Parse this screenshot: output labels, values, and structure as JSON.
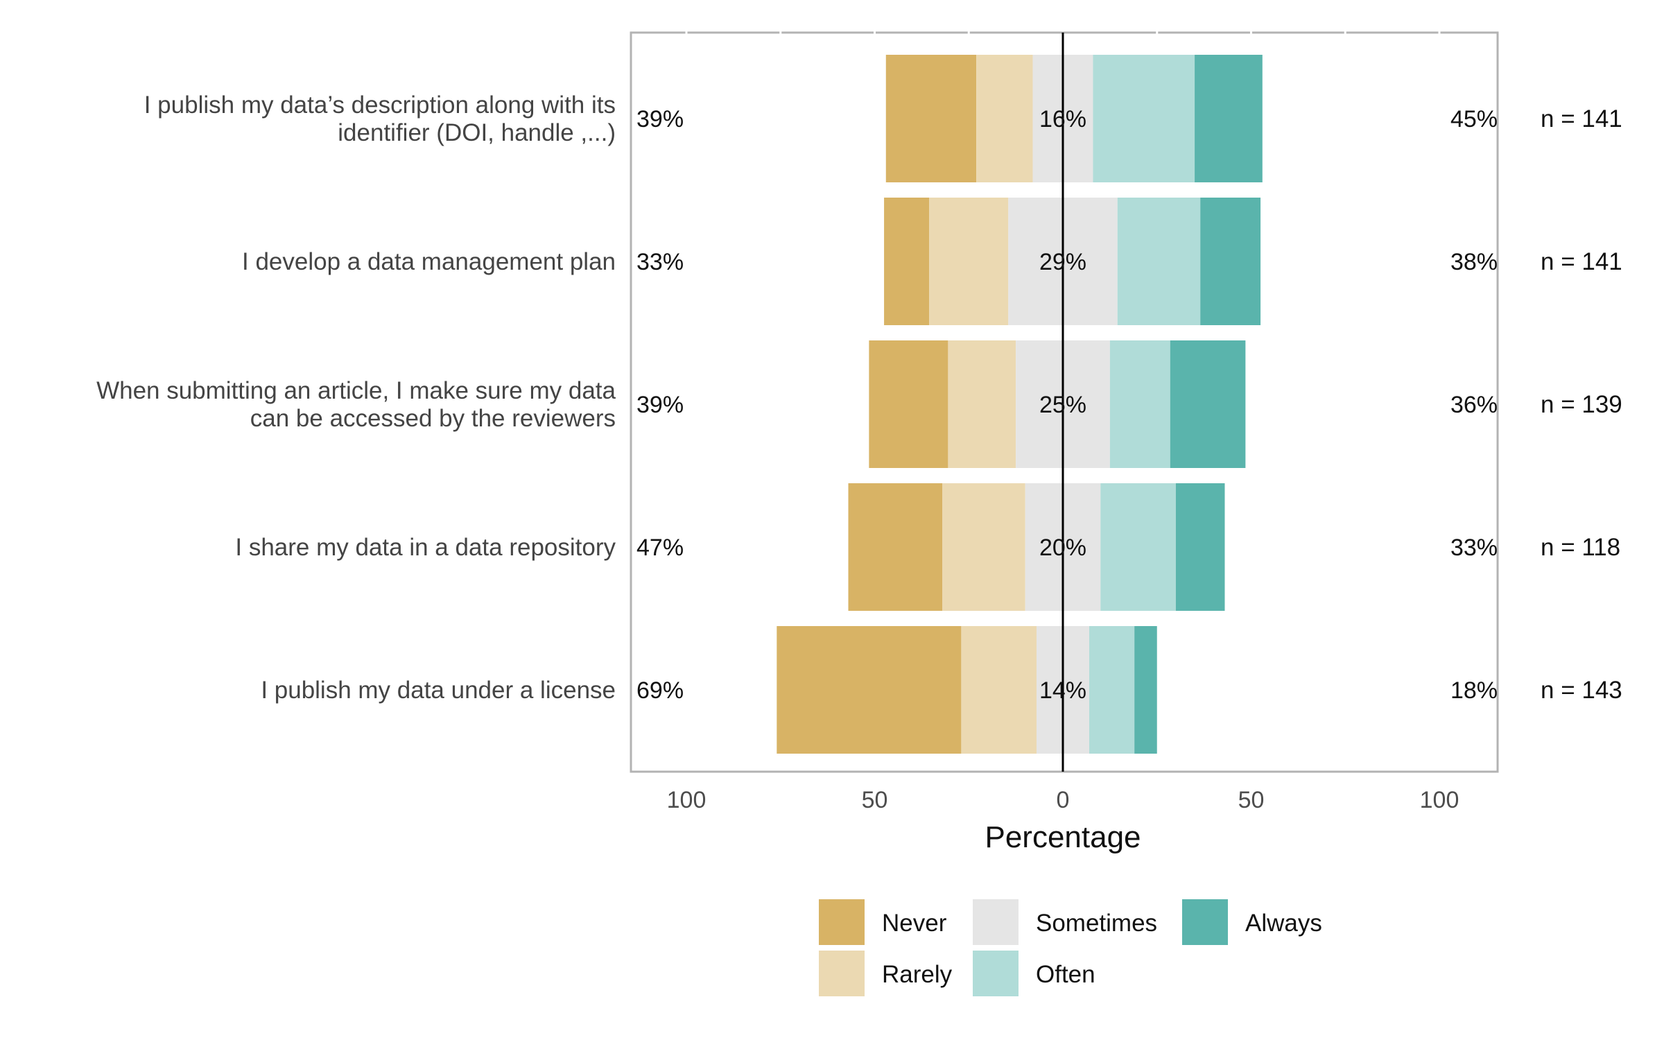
{
  "chart_data": {
    "type": "bar",
    "orientation": "horizontal",
    "stacking": "diverging",
    "xlabel": "Percentage",
    "xlim": [
      -100,
      100
    ],
    "x_ticks": [
      -100,
      -50,
      0,
      50,
      100
    ],
    "x_tick_labels": [
      "100",
      "50",
      "0",
      "50",
      "100"
    ],
    "legend_position": "bottom",
    "levels": [
      {
        "name": "Never",
        "color": "#D8B365"
      },
      {
        "name": "Rarely",
        "color": "#EBD9B2"
      },
      {
        "name": "Sometimes",
        "color": "#E5E5E5"
      },
      {
        "name": "Often",
        "color": "#B0DCD8"
      },
      {
        "name": "Always",
        "color": "#5AB4AC"
      }
    ],
    "items": [
      {
        "label_lines": [
          "I publish my data’s description along with its",
          "identifier (DOI, handle ,...)"
        ],
        "values": [
          24,
          15,
          16,
          27,
          18
        ],
        "low_label": "39%",
        "neutral_label": "16%",
        "high_label": "45%",
        "n_label": "n = 141"
      },
      {
        "label_lines": [
          "I develop a data management plan"
        ],
        "values": [
          12,
          21,
          29,
          22,
          16
        ],
        "low_label": "33%",
        "neutral_label": "29%",
        "high_label": "38%",
        "n_label": "n = 141"
      },
      {
        "label_lines": [
          "When submitting an article, I make sure my data",
          "can be accessed by the reviewers"
        ],
        "values": [
          21,
          18,
          25,
          16,
          20
        ],
        "low_label": "39%",
        "neutral_label": "25%",
        "high_label": "36%",
        "n_label": "n = 139"
      },
      {
        "label_lines": [
          "I share my data in a data repository"
        ],
        "values": [
          25,
          22,
          20,
          20,
          13
        ],
        "low_label": "47%",
        "neutral_label": "20%",
        "high_label": "33%",
        "n_label": "n = 118"
      },
      {
        "label_lines": [
          "I publish my data under a license"
        ],
        "values": [
          49,
          20,
          14,
          12,
          6
        ],
        "low_label": "69%",
        "neutral_label": "14%",
        "high_label": "18%",
        "n_label": "n = 143"
      }
    ]
  }
}
